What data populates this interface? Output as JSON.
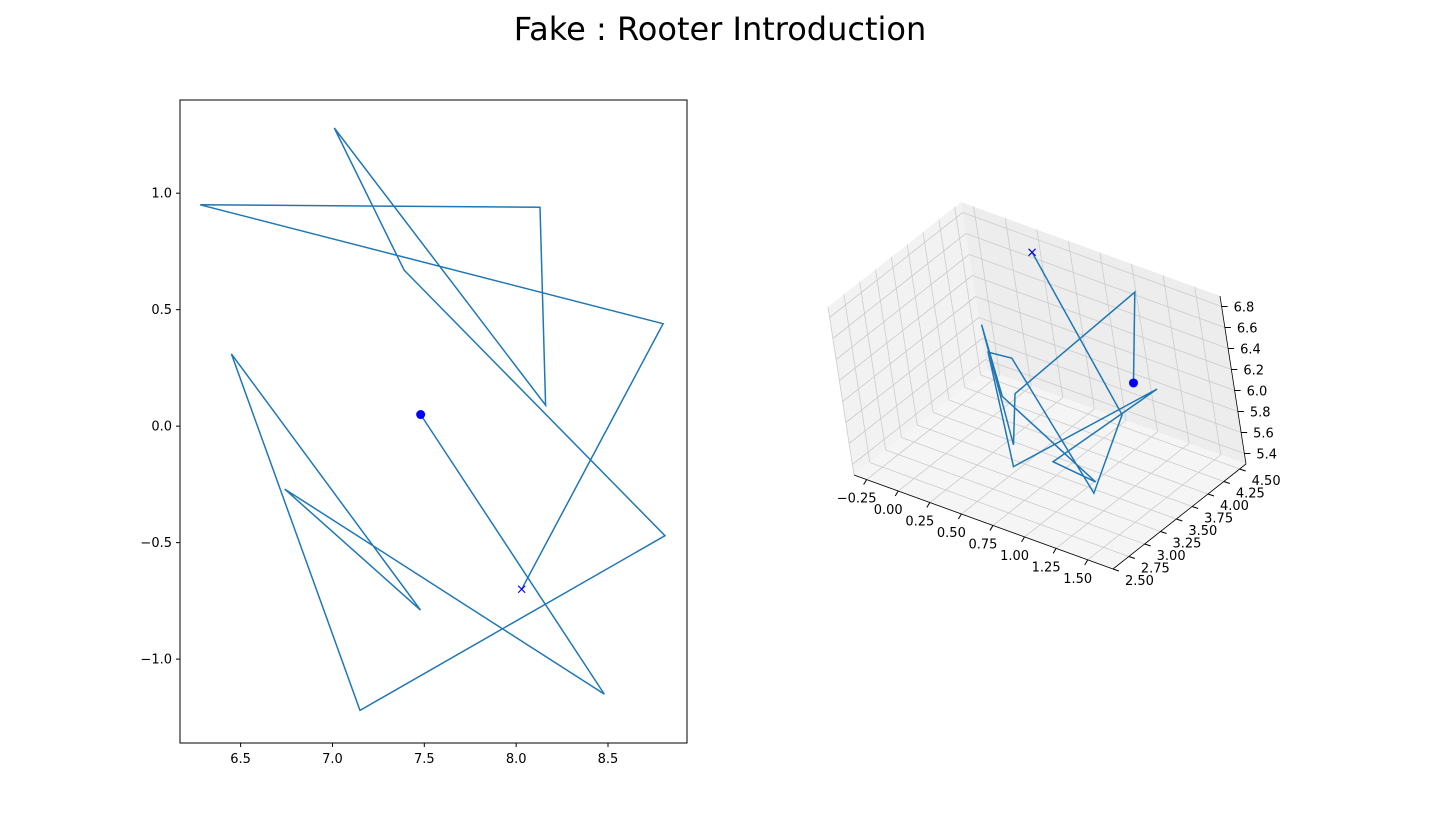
{
  "title": "Fake : Rooter Introduction",
  "colors": {
    "line": "#1f77b4",
    "marker": "#0000ff",
    "pane_left": "#f2f2f2",
    "pane_back": "#ededed",
    "pane_floor": "#f5f5f5",
    "grid": "#cccccc"
  },
  "chart_data": [
    {
      "type": "line",
      "xlim": [
        6.17,
        8.93
      ],
      "ylim": [
        -1.36,
        1.4
      ],
      "xticks": [
        6.5,
        7.0,
        7.5,
        8.0,
        8.5
      ],
      "xtick_labels": [
        "6.5",
        "7.0",
        "7.5",
        "8.0",
        "8.5"
      ],
      "yticks": [
        -1.0,
        -0.5,
        0.0,
        0.5,
        1.0
      ],
      "ytick_labels": [
        "−1.0",
        "−0.5",
        "0.0",
        "0.5",
        "1.0"
      ],
      "series": [
        {
          "x": [
            7.48,
            8.48,
            6.74,
            7.48,
            6.45,
            7.15,
            8.81,
            7.39,
            7.01,
            8.16,
            8.13,
            6.28,
            8.8,
            8.03
          ],
          "y": [
            0.05,
            -1.15,
            -0.27,
            -0.79,
            0.31,
            -1.22,
            -0.47,
            0.67,
            1.28,
            0.09,
            0.94,
            0.95,
            0.44,
            -0.7
          ]
        }
      ],
      "start_marker": {
        "x": 7.48,
        "y": 0.05,
        "shape": "circle"
      },
      "end_marker": {
        "x": 8.03,
        "y": -0.7,
        "shape": "x"
      }
    },
    {
      "type": "line3d",
      "xlim": [
        -0.35,
        1.7
      ],
      "ylim": [
        2.5,
        4.6
      ],
      "zlim": [
        5.3,
        6.9
      ],
      "xticks": [
        -0.25,
        0.0,
        0.25,
        0.5,
        0.75,
        1.0,
        1.25,
        1.5
      ],
      "xtick_labels": [
        "−0.25",
        "0.00",
        "0.25",
        "0.50",
        "0.75",
        "1.00",
        "1.25",
        "1.50"
      ],
      "yticks": [
        2.5,
        2.75,
        3.0,
        3.25,
        3.5,
        3.75,
        4.0,
        4.25,
        4.5
      ],
      "ytick_labels": [
        "2.50",
        "2.75",
        "3.00",
        "3.25",
        "3.50",
        "3.75",
        "4.00",
        "4.25",
        "4.50"
      ],
      "zticks": [
        5.4,
        5.6,
        5.8,
        6.0,
        6.2,
        6.4,
        6.6,
        6.8
      ],
      "ztick_labels": [
        "5.4",
        "5.6",
        "5.8",
        "6.0",
        "6.2",
        "6.4",
        "6.6",
        "6.8"
      ],
      "series": [
        {
          "x": [
            1.1,
            1.05,
            0.45,
            0.55,
            0.2,
            0.4,
            1.25,
            0.8,
            1.35,
            0.7,
            0.1,
            0.35,
            1.4,
            1.5,
            0.3
          ],
          "y": [
            4.2,
            4.5,
            3.6,
            3.3,
            3.7,
            3.5,
            3.2,
            3.4,
            4.1,
            3.0,
            3.9,
            3.8,
            2.9,
            3.3,
            4.4
          ],
          "z": [
            6.0,
            6.7,
            5.9,
            5.6,
            6.4,
            5.9,
            5.6,
            5.5,
            6.1,
            5.6,
            6.0,
            6.1,
            5.7,
            6.3,
            6.8
          ]
        }
      ],
      "start_marker": {
        "x": 1.1,
        "y": 4.2,
        "z": 6.0,
        "shape": "circle"
      },
      "end_marker": {
        "x": 0.3,
        "y": 4.4,
        "z": 6.8,
        "shape": "x"
      }
    }
  ]
}
